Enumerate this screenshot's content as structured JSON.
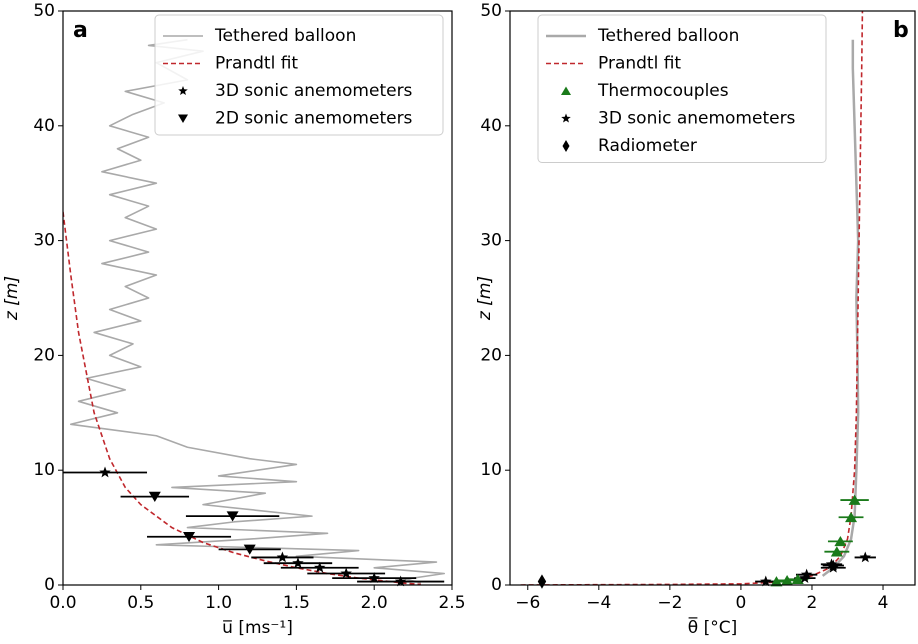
{
  "chart_data": [
    {
      "type": "line",
      "panel_label": "a",
      "xlabel": "u̅ [ms⁻¹]",
      "ylabel": "z [m]",
      "xlim": [
        0,
        2.5
      ],
      "ylim": [
        0,
        50
      ],
      "xticks": [
        {
          "value": 0,
          "label": "0.0"
        },
        {
          "value": 0.5,
          "label": "0.5"
        },
        {
          "value": 1,
          "label": "1.0"
        },
        {
          "value": 1.5,
          "label": "1.5"
        },
        {
          "value": 2,
          "label": "2.0"
        },
        {
          "value": 2.5,
          "label": "2.5"
        }
      ],
      "yticks": [
        0,
        10,
        20,
        30,
        40,
        50
      ],
      "legend": "upper right",
      "series": [
        {
          "name": "Tethered  balloon",
          "type": "line",
          "color": "#a9a9a9",
          "x": [
            0.8,
            0.55,
            0.9,
            0.6,
            0.8,
            0.4,
            0.65,
            0.45,
            0.3,
            0.55,
            0.35,
            0.5,
            0.25,
            0.6,
            0.3,
            0.55,
            0.4,
            0.6,
            0.3,
            0.55,
            0.25,
            0.6,
            0.4,
            0.55,
            0.3,
            0.5,
            0.2,
            0.45,
            0.3,
            0.5,
            0.15,
            0.4,
            0.1,
            0.35,
            0.05,
            0.6,
            0.8,
            1.2,
            1.5,
            1.0,
            1.5,
            0.7,
            1.3,
            0.9,
            1.6,
            1.1,
            0.8,
            1.7,
            1.2,
            0.6,
            1.9,
            1.5,
            2.4,
            2.0,
            2.45,
            2.2,
            2.3
          ],
          "y": [
            47.5,
            47,
            46.5,
            45.5,
            44,
            43,
            42,
            41,
            40,
            39,
            38,
            37,
            36,
            35,
            34,
            33,
            32,
            31,
            30,
            29,
            28,
            27,
            26,
            25,
            24,
            23,
            22,
            21,
            20,
            19,
            18,
            17,
            16,
            15,
            14,
            13,
            12,
            11,
            10.5,
            9.5,
            9,
            8.5,
            8,
            7,
            6,
            5.5,
            5,
            4.5,
            4,
            3.5,
            3,
            2.5,
            2,
            1.5,
            1,
            0.5,
            0.2
          ]
        },
        {
          "name": "Prandtl fit",
          "type": "line",
          "dashed": true,
          "color": "#c0282d",
          "x": [
            0,
            0.05,
            0.1,
            0.15,
            0.2,
            0.3,
            0.4,
            0.5,
            0.7,
            0.9,
            1.1,
            1.3,
            1.5,
            1.7,
            1.9,
            2.1,
            2.2,
            2.3
          ],
          "y": [
            32.5,
            27,
            22,
            18.5,
            15,
            11,
            8.5,
            7,
            5,
            3.7,
            2.8,
            2.1,
            1.5,
            1.0,
            0.6,
            0.3,
            0.15,
            0.05
          ]
        },
        {
          "name": "3D sonic anemometers",
          "type": "scatter",
          "marker": "star",
          "color": "#000000",
          "x": [
            0.27,
            1.41,
            1.51,
            1.65,
            1.82,
            2.0,
            2.17
          ],
          "y": [
            9.8,
            2.4,
            1.9,
            1.5,
            1.0,
            0.6,
            0.3
          ],
          "xerr": [
            0.27,
            0.2,
            0.22,
            0.25,
            0.25,
            0.27,
            0.28
          ]
        },
        {
          "name": "2D sonic anemometers",
          "type": "scatter",
          "marker": "triangle-down",
          "color": "#000000",
          "x": [
            0.59,
            0.81,
            1.09,
            1.2
          ],
          "y": [
            7.7,
            4.2,
            6.0,
            3.1
          ],
          "xerr": [
            0.22,
            0.27,
            0.3,
            0.2
          ]
        }
      ]
    },
    {
      "type": "line",
      "panel_label": "b",
      "xlabel": "θ̅ [°C]",
      "ylabel": "z [m]",
      "xlim": [
        -6.5,
        4.9
      ],
      "ylim": [
        0,
        50
      ],
      "xticks": [
        {
          "value": -6,
          "label": "−6"
        },
        {
          "value": -4,
          "label": "−4"
        },
        {
          "value": -2,
          "label": "−2"
        },
        0,
        2,
        4
      ],
      "yticks": [
        0,
        10,
        20,
        30,
        40,
        50
      ],
      "legend": "upper left",
      "series": [
        {
          "name": "Tethered balloon",
          "type": "line",
          "color": "#a9a9a9",
          "width": 2.5,
          "x": [
            2.3,
            2.6,
            2.9,
            3.1,
            3.2,
            3.25,
            3.3,
            3.28,
            3.25,
            3.3,
            3.25,
            3.2,
            3.15,
            3.15
          ],
          "y": [
            0.8,
            1.5,
            2.5,
            4,
            6,
            10,
            15,
            20,
            25,
            30,
            35,
            40,
            45,
            47.5
          ]
        },
        {
          "name": "Prandtl fit",
          "type": "line",
          "dashed": true,
          "color": "#c0282d",
          "x": [
            -6.2,
            -2,
            0,
            1,
            1.5,
            2,
            2.5,
            2.8,
            3.0,
            3.1,
            3.2,
            3.25,
            3.3,
            3.35,
            3.4,
            3.42
          ],
          "y": [
            0,
            0.05,
            0.1,
            0.25,
            0.45,
            0.8,
            1.5,
            2.5,
            4,
            6,
            10,
            15,
            25,
            35,
            45,
            50
          ]
        },
        {
          "name": "Thermocouples",
          "type": "scatter",
          "marker": "triangle-up",
          "color": "#1a7a1a",
          "x": [
            1.0,
            1.3,
            1.6,
            2.7,
            2.8,
            3.1,
            3.2
          ],
          "y": [
            0.3,
            0.4,
            0.5,
            2.9,
            3.8,
            5.9,
            7.4
          ],
          "xerr": [
            0.3,
            0.3,
            0.3,
            0.35,
            0.35,
            0.35,
            0.4
          ]
        },
        {
          "name": "3D sonic anemometers",
          "type": "scatter",
          "marker": "star",
          "color": "#000000",
          "x": [
            0.7,
            1.8,
            1.85,
            2.6,
            2.55,
            2.6,
            3.5
          ],
          "y": [
            0.3,
            0.6,
            0.9,
            1.5,
            1.8,
            1.7,
            2.4
          ],
          "xerr": [
            0.3,
            0.3,
            0.3,
            0.35,
            0.3,
            0.3,
            0.3
          ]
        },
        {
          "name": "Radiometer",
          "type": "scatter",
          "marker": "diamond",
          "color": "#000000",
          "x": [
            -5.6
          ],
          "y": [
            0.3
          ]
        }
      ]
    }
  ]
}
